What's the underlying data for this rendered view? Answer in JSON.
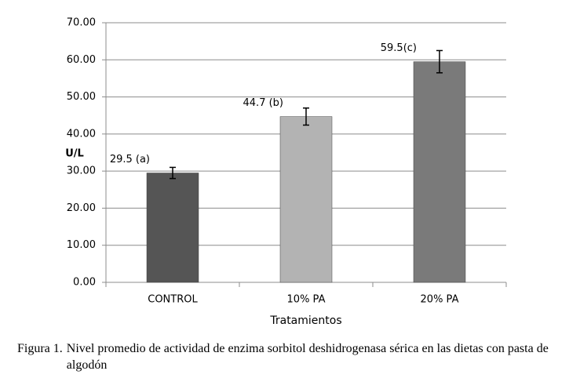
{
  "chart_data": {
    "type": "bar",
    "x_label": "Tratamientos",
    "y_label": "U/L",
    "categories": [
      "CONTROL",
      "10% PA",
      "20% PA"
    ],
    "values": [
      29.5,
      44.7,
      59.5
    ],
    "value_labels": [
      "29.5 (a)",
      "44.7 (b)",
      "59.5(c)"
    ],
    "errors": [
      1.5,
      2.3,
      3
    ],
    "colors": [
      "#555555",
      "#b3b3b3",
      "#7a7a7a"
    ],
    "ylim": [
      0,
      70
    ],
    "yticks": [
      {
        "value": 0,
        "label": "0.00"
      },
      {
        "value": 10,
        "label": "10.00"
      },
      {
        "value": 20,
        "label": "20.00"
      },
      {
        "value": 30,
        "label": "30.00"
      },
      {
        "value": 40,
        "label": "40.00"
      },
      {
        "value": 50,
        "label": "50.00"
      },
      {
        "value": 60,
        "label": "60.00"
      },
      {
        "value": 70,
        "label": "70.00"
      }
    ],
    "grid": true
  },
  "caption": {
    "label": "Figura 1.",
    "text": "Nivel promedio de actividad de enzima sorbitol deshidrogenasa sérica en las dietas con pasta de algodón"
  }
}
